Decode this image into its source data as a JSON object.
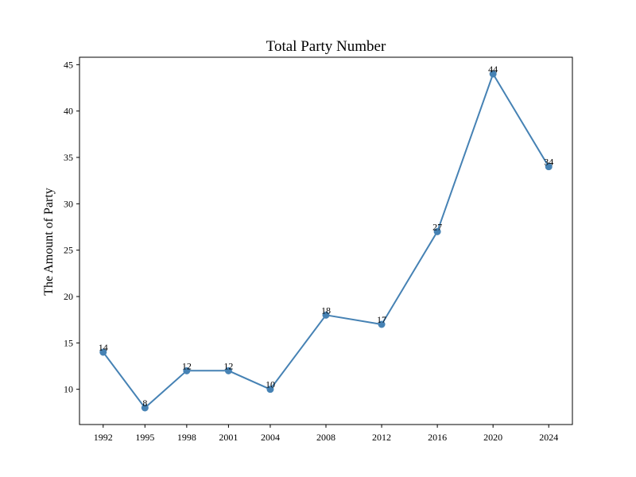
{
  "chart_data": {
    "type": "line",
    "title": "Total Party Number",
    "xlabel": "",
    "ylabel": "The Amount of Party",
    "x": [
      1992,
      1995,
      1998,
      2001,
      2004,
      2008,
      2012,
      2016,
      2020,
      2024
    ],
    "xticks": [
      "1992",
      "1995",
      "1998",
      "2001",
      "2004",
      "2008",
      "2012",
      "2016",
      "2020",
      "2024"
    ],
    "values": [
      14,
      8,
      12,
      12,
      10,
      18,
      17,
      27,
      44,
      34
    ],
    "data_labels": [
      "14",
      "8",
      "12",
      "12",
      "10",
      "18",
      "17",
      "27",
      "44",
      "34"
    ],
    "yticks": [
      "10",
      "15",
      "20",
      "25",
      "30",
      "35",
      "40",
      "45"
    ],
    "xlim": [
      1990.3,
      2025.7
    ],
    "ylim": [
      6.2,
      45.8
    ],
    "grid": false,
    "colors": {
      "line": "#4682b4",
      "marker": "#4682b4"
    }
  }
}
